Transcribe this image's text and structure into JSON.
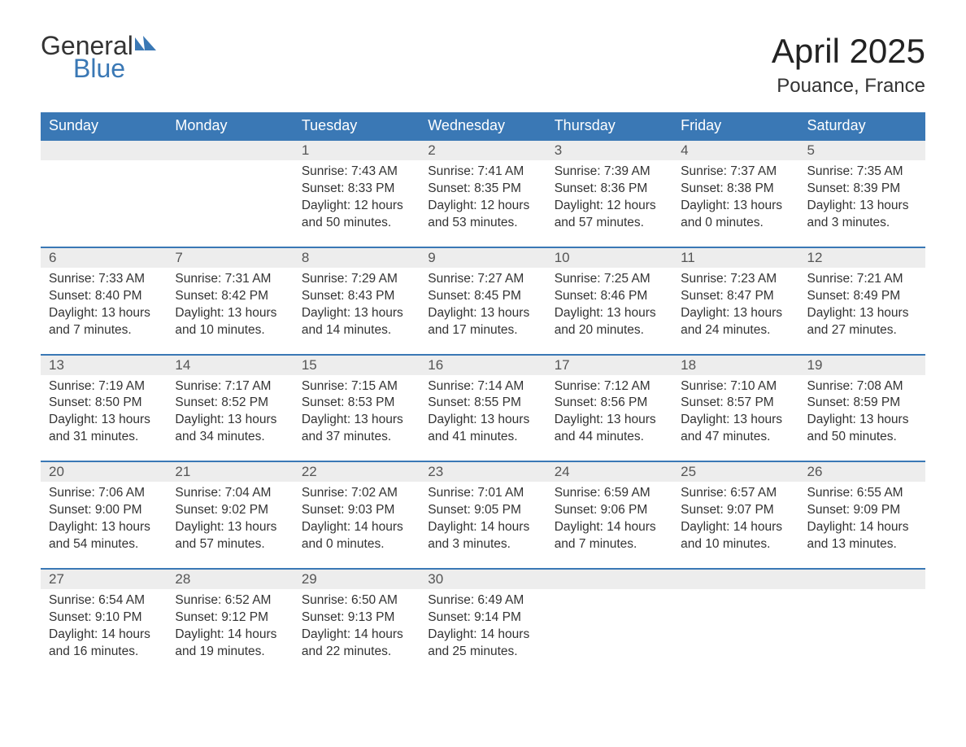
{
  "brand": {
    "general": "General",
    "blue": "Blue",
    "flag_color": "#3a78b5"
  },
  "title": "April 2025",
  "location": "Pouance, France",
  "colors": {
    "header_bg": "#3a78b5",
    "header_text": "#ffffff",
    "daynum_bg": "#ededed",
    "daynum_border": "#3a78b5",
    "body_text": "#333333",
    "page_bg": "#ffffff"
  },
  "dayHeaders": [
    "Sunday",
    "Monday",
    "Tuesday",
    "Wednesday",
    "Thursday",
    "Friday",
    "Saturday"
  ],
  "weeks": [
    [
      null,
      null,
      {
        "n": "1",
        "sr": "7:43 AM",
        "ss": "8:33 PM",
        "dl": "12 hours and 50 minutes."
      },
      {
        "n": "2",
        "sr": "7:41 AM",
        "ss": "8:35 PM",
        "dl": "12 hours and 53 minutes."
      },
      {
        "n": "3",
        "sr": "7:39 AM",
        "ss": "8:36 PM",
        "dl": "12 hours and 57 minutes."
      },
      {
        "n": "4",
        "sr": "7:37 AM",
        "ss": "8:38 PM",
        "dl": "13 hours and 0 minutes."
      },
      {
        "n": "5",
        "sr": "7:35 AM",
        "ss": "8:39 PM",
        "dl": "13 hours and 3 minutes."
      }
    ],
    [
      {
        "n": "6",
        "sr": "7:33 AM",
        "ss": "8:40 PM",
        "dl": "13 hours and 7 minutes."
      },
      {
        "n": "7",
        "sr": "7:31 AM",
        "ss": "8:42 PM",
        "dl": "13 hours and 10 minutes."
      },
      {
        "n": "8",
        "sr": "7:29 AM",
        "ss": "8:43 PM",
        "dl": "13 hours and 14 minutes."
      },
      {
        "n": "9",
        "sr": "7:27 AM",
        "ss": "8:45 PM",
        "dl": "13 hours and 17 minutes."
      },
      {
        "n": "10",
        "sr": "7:25 AM",
        "ss": "8:46 PM",
        "dl": "13 hours and 20 minutes."
      },
      {
        "n": "11",
        "sr": "7:23 AM",
        "ss": "8:47 PM",
        "dl": "13 hours and 24 minutes."
      },
      {
        "n": "12",
        "sr": "7:21 AM",
        "ss": "8:49 PM",
        "dl": "13 hours and 27 minutes."
      }
    ],
    [
      {
        "n": "13",
        "sr": "7:19 AM",
        "ss": "8:50 PM",
        "dl": "13 hours and 31 minutes."
      },
      {
        "n": "14",
        "sr": "7:17 AM",
        "ss": "8:52 PM",
        "dl": "13 hours and 34 minutes."
      },
      {
        "n": "15",
        "sr": "7:15 AM",
        "ss": "8:53 PM",
        "dl": "13 hours and 37 minutes."
      },
      {
        "n": "16",
        "sr": "7:14 AM",
        "ss": "8:55 PM",
        "dl": "13 hours and 41 minutes."
      },
      {
        "n": "17",
        "sr": "7:12 AM",
        "ss": "8:56 PM",
        "dl": "13 hours and 44 minutes."
      },
      {
        "n": "18",
        "sr": "7:10 AM",
        "ss": "8:57 PM",
        "dl": "13 hours and 47 minutes."
      },
      {
        "n": "19",
        "sr": "7:08 AM",
        "ss": "8:59 PM",
        "dl": "13 hours and 50 minutes."
      }
    ],
    [
      {
        "n": "20",
        "sr": "7:06 AM",
        "ss": "9:00 PM",
        "dl": "13 hours and 54 minutes."
      },
      {
        "n": "21",
        "sr": "7:04 AM",
        "ss": "9:02 PM",
        "dl": "13 hours and 57 minutes."
      },
      {
        "n": "22",
        "sr": "7:02 AM",
        "ss": "9:03 PM",
        "dl": "14 hours and 0 minutes."
      },
      {
        "n": "23",
        "sr": "7:01 AM",
        "ss": "9:05 PM",
        "dl": "14 hours and 3 minutes."
      },
      {
        "n": "24",
        "sr": "6:59 AM",
        "ss": "9:06 PM",
        "dl": "14 hours and 7 minutes."
      },
      {
        "n": "25",
        "sr": "6:57 AM",
        "ss": "9:07 PM",
        "dl": "14 hours and 10 minutes."
      },
      {
        "n": "26",
        "sr": "6:55 AM",
        "ss": "9:09 PM",
        "dl": "14 hours and 13 minutes."
      }
    ],
    [
      {
        "n": "27",
        "sr": "6:54 AM",
        "ss": "9:10 PM",
        "dl": "14 hours and 16 minutes."
      },
      {
        "n": "28",
        "sr": "6:52 AM",
        "ss": "9:12 PM",
        "dl": "14 hours and 19 minutes."
      },
      {
        "n": "29",
        "sr": "6:50 AM",
        "ss": "9:13 PM",
        "dl": "14 hours and 22 minutes."
      },
      {
        "n": "30",
        "sr": "6:49 AM",
        "ss": "9:14 PM",
        "dl": "14 hours and 25 minutes."
      },
      null,
      null,
      null
    ]
  ],
  "labels": {
    "sunrise": "Sunrise: ",
    "sunset": "Sunset: ",
    "daylight": "Daylight: "
  }
}
